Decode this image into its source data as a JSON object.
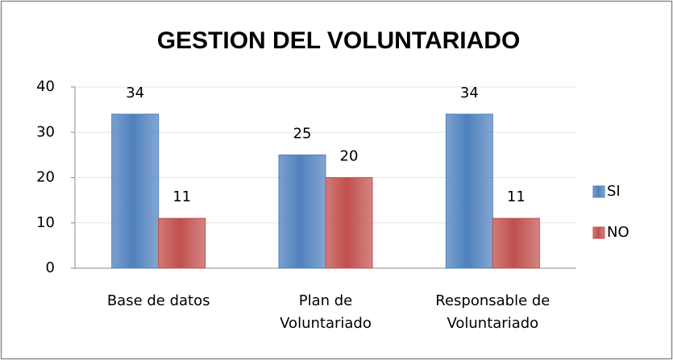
{
  "chart_data": {
    "type": "bar",
    "title": "GESTION DEL VOLUNTARIADO",
    "categories": [
      "Base de datos",
      "Plan de Voluntariado",
      "Responsable de Voluntariado"
    ],
    "series": [
      {
        "name": "SI",
        "color": "#4f81bd",
        "values": [
          34,
          25,
          34
        ]
      },
      {
        "name": "NO",
        "color": "#c0504d",
        "values": [
          11,
          20,
          11
        ]
      }
    ],
    "ylim": [
      0,
      40
    ],
    "yticks": [
      0,
      10,
      20,
      30,
      40
    ],
    "grid": true,
    "legend": "right"
  }
}
